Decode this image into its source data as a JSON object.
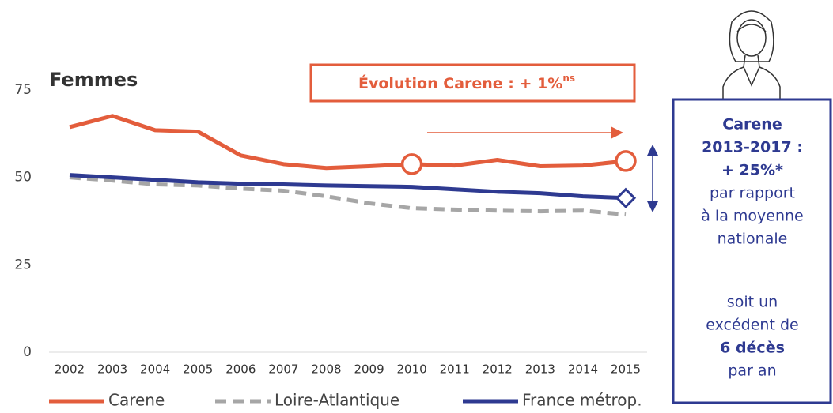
{
  "chart_data": {
    "type": "line",
    "title": "Femmes",
    "x": [
      2002,
      2003,
      2004,
      2005,
      2006,
      2007,
      2008,
      2009,
      2010,
      2011,
      2012,
      2013,
      2014,
      2015
    ],
    "series": [
      {
        "name": "Carene",
        "color": "#e35d3c",
        "dash": false,
        "marker": "circle",
        "marker_indices": [
          8,
          13
        ],
        "values": [
          64.4,
          67.6,
          63.5,
          63.1,
          56.3,
          53.8,
          52.7,
          53.2,
          53.8,
          53.4,
          55.0,
          53.2,
          53.4,
          54.7
        ]
      },
      {
        "name": "Loire-Atlantique",
        "color": "#a6a6a6",
        "dash": true,
        "values": [
          50.0,
          49.1,
          48.0,
          47.7,
          46.8,
          46.2,
          44.6,
          42.6,
          41.2,
          40.8,
          40.5,
          40.3,
          40.5,
          39.4
        ]
      },
      {
        "name": "France métrop.",
        "color": "#2e3a91",
        "dash": false,
        "marker": "diamond",
        "marker_indices": [
          13
        ],
        "values": [
          50.7,
          50.0,
          49.3,
          48.6,
          48.2,
          48.0,
          47.7,
          47.5,
          47.3,
          46.6,
          45.9,
          45.5,
          44.6,
          44.1
        ]
      }
    ],
    "ylim": [
      0,
      75
    ],
    "yticks": [
      0,
      25,
      50,
      75
    ],
    "grid": false,
    "annotation": {
      "text": "Évolution Carene : + 1%",
      "superscript": "ns"
    },
    "side_note": [
      [
        {
          "text": "Carene",
          "bold": true
        },
        {
          "text": "2013-2017 :",
          "bold": true
        },
        {
          "text": "+ 25%*",
          "bold": true
        },
        {
          "text": "par rapport",
          "bold": false
        },
        {
          "text": "à la moyenne",
          "bold": false
        },
        {
          "text": "nationale",
          "bold": false
        }
      ],
      [
        {
          "text": "soit un",
          "bold": false
        },
        {
          "text": "excédent de",
          "bold": false
        },
        {
          "text": "6 décès",
          "bold": true
        },
        {
          "text": "par an",
          "bold": false
        }
      ]
    ]
  }
}
